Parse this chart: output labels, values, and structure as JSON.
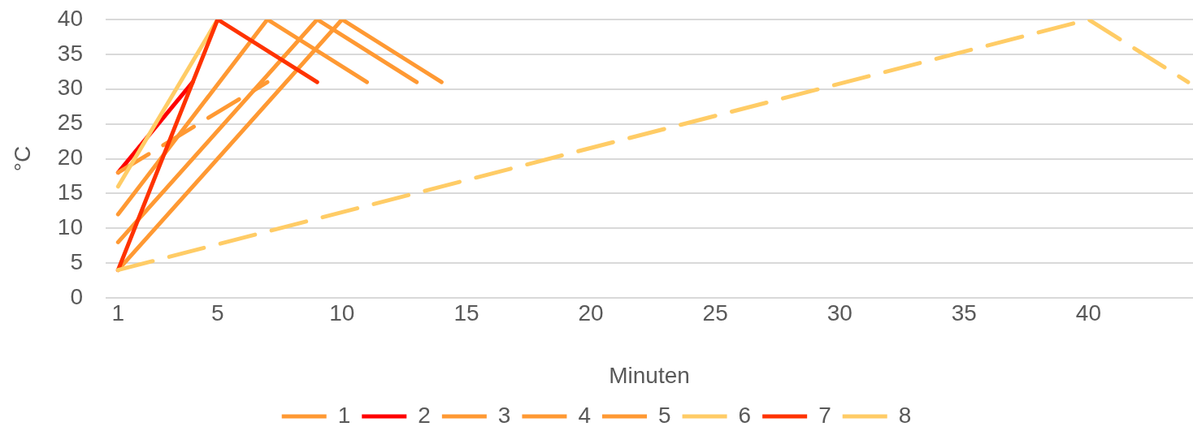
{
  "chart_data": {
    "type": "line",
    "xlabel": "Minuten",
    "ylabel": "°C",
    "xlim": [
      0.5,
      44.2
    ],
    "xticks": [
      1,
      5,
      10,
      15,
      20,
      25,
      30,
      35,
      40
    ],
    "ylim": [
      0,
      40
    ],
    "yticks": [
      0,
      5,
      10,
      15,
      20,
      25,
      30,
      35,
      40
    ],
    "grid": "y",
    "legend": "bottom",
    "marker": "none",
    "line_style": "solid",
    "series": [
      {
        "name": "1",
        "color": "#ff9933",
        "x": [
          1,
          7,
          11
        ],
        "values": [
          12,
          40,
          31
        ]
      },
      {
        "name": "2",
        "color": "#ff0000",
        "x": [
          1,
          4
        ],
        "values": [
          18,
          31
        ]
      },
      {
        "name": "3",
        "color": "#ff9933",
        "x": [
          1,
          9,
          13
        ],
        "values": [
          8,
          40,
          31
        ]
      },
      {
        "name": "4",
        "color": "#ff9933",
        "x": [
          1,
          10,
          14
        ],
        "values": [
          4,
          40,
          31
        ]
      },
      {
        "name": "5",
        "color": "#ff9933",
        "x": [
          1,
          7
        ],
        "values": [
          18,
          31
        ],
        "line_style": "dashed"
      },
      {
        "name": "6",
        "color": "#ffcc66",
        "x": [
          1,
          5
        ],
        "values": [
          16,
          40
        ]
      },
      {
        "name": "7",
        "color": "#ff3300",
        "x": [
          1,
          5,
          9
        ],
        "values": [
          4,
          40,
          31
        ]
      },
      {
        "name": "8",
        "color": "#ffcc66",
        "x": [
          1,
          40,
          44
        ],
        "values": [
          4,
          40,
          31
        ],
        "line_style": "dashed"
      }
    ]
  }
}
